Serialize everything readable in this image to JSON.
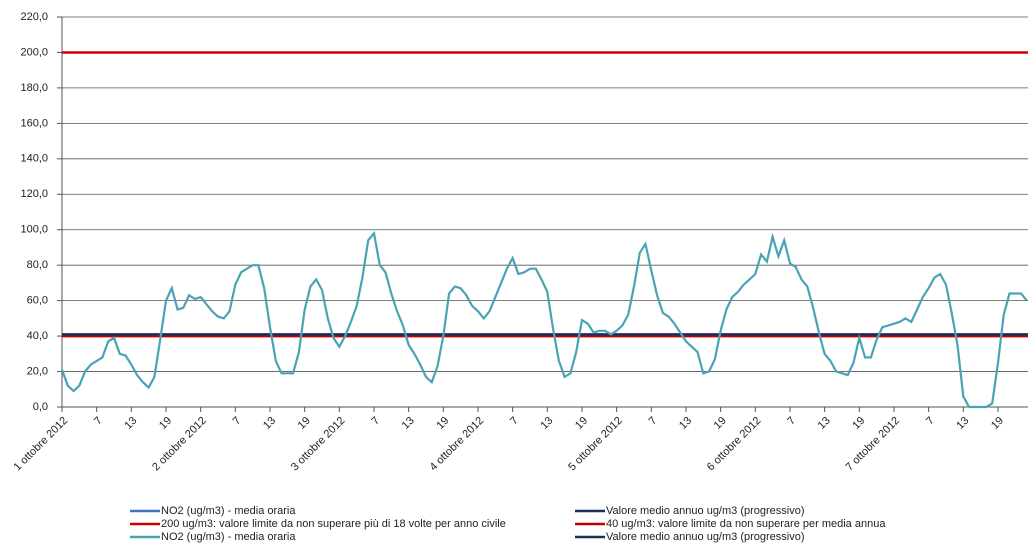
{
  "chart_data": {
    "type": "line",
    "categories": [
      "1 ottobre 2012",
      null,
      null,
      null,
      null,
      null,
      "7",
      null,
      null,
      null,
      null,
      null,
      "13",
      null,
      null,
      null,
      null,
      null,
      "19",
      null,
      null,
      null,
      null,
      null,
      "2 ottobre 2012",
      null,
      null,
      null,
      null,
      null,
      "7",
      null,
      null,
      null,
      null,
      null,
      "13",
      null,
      null,
      null,
      null,
      null,
      "19",
      null,
      null,
      null,
      null,
      null,
      "3 ottobre 2012",
      null,
      null,
      null,
      null,
      null,
      "7",
      null,
      null,
      null,
      null,
      null,
      "13",
      null,
      null,
      null,
      null,
      null,
      "19",
      null,
      null,
      null,
      null,
      null,
      "4 ottobre 2012",
      null,
      null,
      null,
      null,
      null,
      "7",
      null,
      null,
      null,
      null,
      null,
      "13",
      null,
      null,
      null,
      null,
      null,
      "19",
      null,
      null,
      null,
      null,
      null,
      "5 ottobre 2012",
      null,
      null,
      null,
      null,
      null,
      "7",
      null,
      null,
      null,
      null,
      null,
      "13",
      null,
      null,
      null,
      null,
      null,
      "19",
      null,
      null,
      null,
      null,
      null,
      "6 ottobre 2012",
      null,
      null,
      null,
      null,
      null,
      "7",
      null,
      null,
      null,
      null,
      null,
      "13",
      null,
      null,
      null,
      null,
      null,
      "19",
      null,
      null,
      null,
      null,
      null,
      "7 ottobre 2012",
      null,
      null,
      null,
      null,
      null,
      "7",
      null,
      null,
      null,
      null,
      null,
      "13",
      null,
      null,
      null,
      null,
      null,
      "19",
      null,
      null,
      null,
      null,
      null
    ],
    "series": [
      {
        "name": "NO2 (ug/m3)  - media oraria",
        "color": "#4aa3b5",
        "values": [
          21,
          12,
          9,
          12,
          20,
          24,
          26,
          28,
          37,
          39,
          30,
          29,
          24,
          18,
          14,
          11,
          17,
          38,
          60,
          67,
          55,
          56,
          63,
          61,
          62,
          58,
          54,
          51,
          50,
          54,
          69,
          76,
          78,
          80,
          80,
          67,
          45,
          26,
          19,
          19,
          19,
          31,
          55,
          68,
          72,
          66,
          50,
          39,
          34,
          40,
          48,
          57,
          73,
          94,
          98,
          80,
          76,
          64,
          54,
          46,
          35,
          30,
          24,
          17,
          14,
          23,
          40,
          64,
          68,
          67,
          63,
          57,
          54,
          50,
          54,
          62,
          70,
          78,
          84,
          75,
          76,
          78,
          78,
          72,
          65,
          44,
          26,
          17,
          19,
          31,
          49,
          47,
          42,
          43,
          43,
          41,
          43,
          46,
          52,
          68,
          87,
          92,
          77,
          63,
          53,
          51,
          47,
          42,
          37,
          34,
          31,
          19,
          20,
          27,
          43,
          55,
          62,
          65,
          69,
          72,
          75,
          86,
          82,
          96,
          85,
          94,
          81,
          79,
          72,
          68,
          56,
          42,
          30,
          26,
          20,
          19,
          18,
          25,
          39,
          28,
          28,
          38,
          45,
          46,
          47,
          48,
          50,
          48,
          55,
          62,
          67,
          73,
          75,
          69,
          53,
          35,
          6,
          0,
          0,
          0,
          0,
          2,
          25,
          52,
          64,
          64,
          64,
          60
        ]
      }
    ],
    "reference_lines": [
      {
        "value": 200,
        "color": "#cc0000"
      },
      {
        "value": 40,
        "color": "#c00000"
      },
      {
        "value": 41,
        "color": "#1f2d5c"
      }
    ],
    "legend": [
      {
        "name": "NO2 (ug/m3)  - media oraria",
        "color": "#4472c4"
      },
      {
        "name": "Valore medio annuo ug/m3 (progressivo)",
        "color": "#1f2d5c"
      },
      {
        "name": "200 ug/m3: valore limite da non superare più di 18 volte per anno civile",
        "color": "#cc0000"
      },
      {
        "name": "40 ug/m3: valore limite da non superare per media annua",
        "color": "#c00000"
      },
      {
        "name": "NO2 (ug/m3)  - media oraria",
        "color": "#4aa3b5"
      },
      {
        "name": "Valore medio annuo ug/m3 (progressivo)",
        "color": "#1f2d5c"
      }
    ],
    "ylim": [
      0,
      220
    ],
    "yticks": [
      {
        "value": 0,
        "label": "0,0"
      },
      {
        "value": 20,
        "label": "20,0"
      },
      {
        "value": 40,
        "label": "40,0"
      },
      {
        "value": 60,
        "label": "60,0"
      },
      {
        "value": 80,
        "label": "80,0"
      },
      {
        "value": 100,
        "label": "100,0"
      },
      {
        "value": 120,
        "label": "120,0"
      },
      {
        "value": 140,
        "label": "140,0"
      },
      {
        "value": 160,
        "label": "160,0"
      },
      {
        "value": 180,
        "label": "180,0"
      },
      {
        "value": 200,
        "label": "200,0"
      },
      {
        "value": 220,
        "label": "220,0"
      }
    ],
    "grid": true
  }
}
